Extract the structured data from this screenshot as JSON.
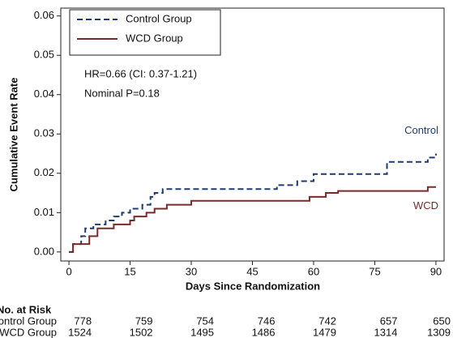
{
  "chart_data": {
    "type": "line",
    "step": "post",
    "xlabel": "Days Since Randomization",
    "ylabel": "Cumulative Event Rate",
    "xlim": [
      -2,
      92
    ],
    "ylim": [
      -0.0023,
      0.062
    ],
    "xticks": [
      0,
      15,
      30,
      45,
      60,
      75,
      90
    ],
    "yticks": [
      {
        "value": 0,
        "label": "0.00"
      },
      {
        "value": 0.01,
        "label": "0.01"
      },
      {
        "value": 0.02,
        "label": "0.02"
      },
      {
        "value": 0.03,
        "label": "0.03"
      },
      {
        "value": 0.04,
        "label": "0.04"
      },
      {
        "value": 0.05,
        "label": "0.05"
      },
      {
        "value": 0.06,
        "label": "0.06"
      }
    ],
    "grid": false,
    "legend": "upper left",
    "series": [
      {
        "name": "Control Group",
        "color": "#1f3a73",
        "dash": true,
        "end_label": "Control",
        "x": [
          0,
          1,
          3,
          4,
          6,
          9,
          11,
          13,
          15,
          18,
          20,
          21,
          23,
          51,
          56,
          60,
          78,
          88,
          90
        ],
        "values": [
          0,
          0.002,
          0.004,
          0.006,
          0.007,
          0.008,
          0.009,
          0.01,
          0.011,
          0.012,
          0.014,
          0.015,
          0.016,
          0.017,
          0.018,
          0.0198,
          0.0229,
          0.024,
          0.025
        ]
      },
      {
        "name": "WCD Group",
        "color": "#7a2a2a",
        "dash": false,
        "end_label": "WCD",
        "x": [
          0,
          1,
          5,
          7,
          11,
          15,
          16,
          19,
          21,
          24,
          30,
          59,
          63,
          66,
          88,
          90
        ],
        "values": [
          0,
          0.002,
          0.004,
          0.006,
          0.007,
          0.008,
          0.009,
          0.01,
          0.011,
          0.012,
          0.013,
          0.014,
          0.015,
          0.0155,
          0.0165,
          0.0165
        ]
      }
    ],
    "annotations": [
      "HR=0.66 (CI: 0.37-1.21)",
      "Nominal P=0.18"
    ],
    "risk_table": {
      "title": "No. at Risk",
      "rows": [
        {
          "label": "Control Group",
          "values": [
            778,
            759,
            754,
            746,
            742,
            657,
            650
          ]
        },
        {
          "label": "WCD Group",
          "values": [
            1524,
            1502,
            1495,
            1486,
            1479,
            1314,
            1309
          ]
        }
      ]
    }
  }
}
